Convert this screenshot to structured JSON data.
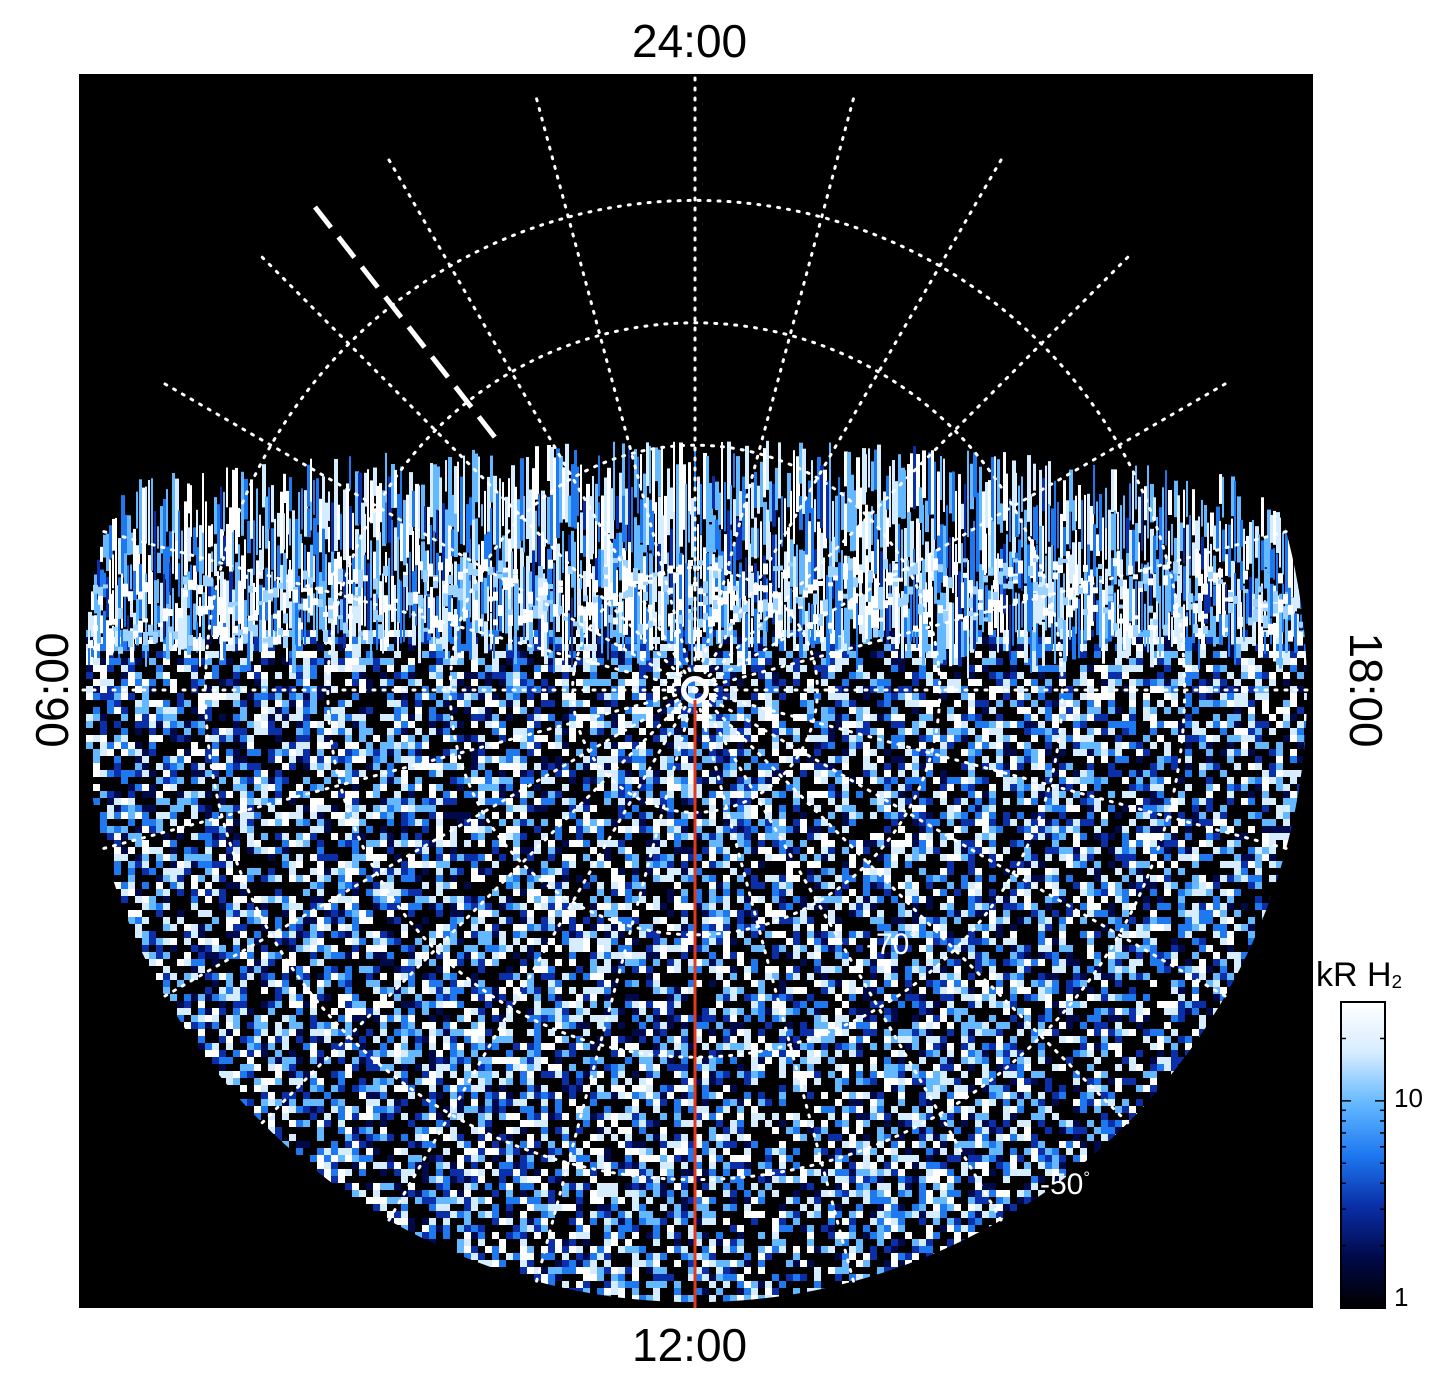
{
  "chart_data": {
    "type": "heatmap",
    "projection": "polar",
    "local_time_labels": {
      "top": "24:00",
      "bottom": "12:00",
      "left": "06:00",
      "right": "18:00"
    },
    "latitude_labels": [
      "70",
      "50"
    ],
    "latitude_label_unit": "°",
    "latitude_label_sign": "-",
    "latitude_circles_deg": [
      -80,
      -70,
      -60,
      -50
    ],
    "meridian_spacing_hours": 1,
    "meridian_style": "dotted",
    "highlighted_meridian_hours": [
      11.5,
      12
    ],
    "highlighted_meridian_styles": [
      "dashed-white",
      "solid-red"
    ],
    "colorbar": {
      "title_prefix": "kR H",
      "title_subscript": "2",
      "scale": "log",
      "range": [
        1,
        30
      ],
      "ticks": [
        "10",
        "1"
      ],
      "colormap": [
        "#000000",
        "#000a4a",
        "#0a2fa8",
        "#1e78f0",
        "#63b8ff",
        "#d6ecff",
        "#ffffff"
      ]
    },
    "colors": {
      "background": "#000000",
      "grid": "#ffffff",
      "meridian_highlight": "#e03a1e"
    }
  }
}
